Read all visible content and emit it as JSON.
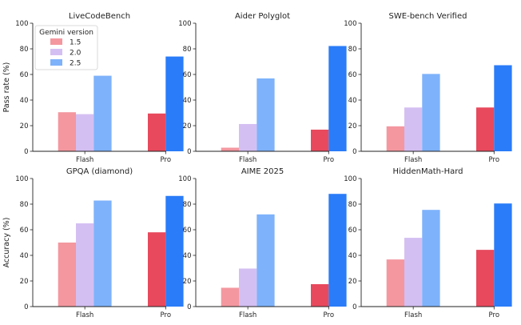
{
  "figure": {
    "row_ylabels": [
      "Pass rate (%)",
      "Accuracy (%)"
    ]
  },
  "legend": {
    "title": "Gemini version",
    "placement": "upper-left of first panel",
    "entries": [
      {
        "label": "1.5",
        "color": "#f4979f"
      },
      {
        "label": "2.0",
        "color": "#d4bff2"
      },
      {
        "label": "2.5",
        "color": "#7eb2fb"
      }
    ]
  },
  "colors": {
    "flash": [
      "#f4979f",
      "#d4bff2",
      "#7eb2fb"
    ],
    "pro": [
      "#e8495d",
      "#b48ee8",
      "#2a7cf8"
    ]
  },
  "chart_data": [
    {
      "type": "bar",
      "title": "LiveCodeBench",
      "categories": [
        "Flash",
        "Pro"
      ],
      "series": [
        {
          "name": "1.5",
          "values": [
            30.5,
            29.5
          ]
        },
        {
          "name": "2.0",
          "values": [
            29,
            null
          ]
        },
        {
          "name": "2.5",
          "values": [
            59,
            74
          ]
        }
      ],
      "ylim": [
        0,
        100
      ],
      "yticks": [
        0,
        20,
        40,
        60,
        80,
        100
      ],
      "ylabel": "Pass rate (%)"
    },
    {
      "type": "bar",
      "title": "Aider Polyglot",
      "categories": [
        "Flash",
        "Pro"
      ],
      "series": [
        {
          "name": "1.5",
          "values": [
            2.8,
            16.9
          ]
        },
        {
          "name": "2.0",
          "values": [
            21.3,
            null
          ]
        },
        {
          "name": "2.5",
          "values": [
            56.9,
            82.2
          ]
        }
      ],
      "ylim": [
        0,
        100
      ],
      "yticks": [
        0,
        20,
        40,
        60,
        80,
        100
      ]
    },
    {
      "type": "bar",
      "title": "SWE-bench Verified",
      "categories": [
        "Flash",
        "Pro"
      ],
      "series": [
        {
          "name": "1.5",
          "values": [
            19.5,
            34.2
          ]
        },
        {
          "name": "2.0",
          "values": [
            34.2,
            null
          ]
        },
        {
          "name": "2.5",
          "values": [
            60.4,
            67.2
          ]
        }
      ],
      "ylim": [
        0,
        100
      ],
      "yticks": [
        0,
        20,
        40,
        60,
        80,
        100
      ]
    },
    {
      "type": "bar",
      "title": "GPQA (diamond)",
      "categories": [
        "Flash",
        "Pro"
      ],
      "series": [
        {
          "name": "1.5",
          "values": [
            50,
            58
          ]
        },
        {
          "name": "2.0",
          "values": [
            65,
            null
          ]
        },
        {
          "name": "2.5",
          "values": [
            82.8,
            86.4
          ]
        }
      ],
      "ylim": [
        0,
        100
      ],
      "yticks": [
        0,
        20,
        40,
        60,
        80,
        100
      ],
      "ylabel": "Accuracy (%)"
    },
    {
      "type": "bar",
      "title": "AIME 2025",
      "categories": [
        "Flash",
        "Pro"
      ],
      "series": [
        {
          "name": "1.5",
          "values": [
            14.7,
            17.5
          ]
        },
        {
          "name": "2.0",
          "values": [
            29.7,
            null
          ]
        },
        {
          "name": "2.5",
          "values": [
            72,
            88
          ]
        }
      ],
      "ylim": [
        0,
        100
      ],
      "yticks": [
        0,
        20,
        40,
        60,
        80,
        100
      ]
    },
    {
      "type": "bar",
      "title": "HiddenMath-Hard",
      "categories": [
        "Flash",
        "Pro"
      ],
      "series": [
        {
          "name": "1.5",
          "values": [
            36.8,
            44.3
          ]
        },
        {
          "name": "2.0",
          "values": [
            53.7,
            null
          ]
        },
        {
          "name": "2.5",
          "values": [
            75.5,
            80.5
          ]
        }
      ],
      "ylim": [
        0,
        100
      ],
      "yticks": [
        0,
        20,
        40,
        60,
        80,
        100
      ]
    }
  ]
}
